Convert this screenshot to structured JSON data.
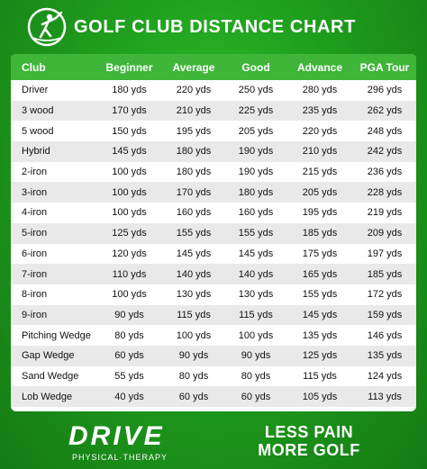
{
  "header": {
    "title": "GOLF CLUB DISTANCE CHART",
    "logo_icon": "golfer-swing-icon"
  },
  "table": {
    "columns": [
      "Club",
      "Beginner",
      "Average",
      "Good",
      "Advance",
      "PGA Tour"
    ],
    "rows": [
      [
        "Driver",
        "180 yds",
        "220 yds",
        "250 yds",
        "280 yds",
        "296 yds"
      ],
      [
        "3 wood",
        "170 yds",
        "210 yds",
        "225 yds",
        "235 yds",
        "262 yds"
      ],
      [
        "5 wood",
        "150 yds",
        "195 yds",
        "205 yds",
        "220 yds",
        "248 yds"
      ],
      [
        "Hybrid",
        "145 yds",
        "180 yds",
        "190 yds",
        "210 yds",
        "242 yds"
      ],
      [
        "2-iron",
        "100 yds",
        "180 yds",
        "190 yds",
        "215 yds",
        "236 yds"
      ],
      [
        "3-iron",
        "100 yds",
        "170 yds",
        "180 yds",
        "205 yds",
        "228 yds"
      ],
      [
        "4-iron",
        "100 yds",
        "160 yds",
        "160 yds",
        "195 yds",
        "219 yds"
      ],
      [
        "5-iron",
        "125 yds",
        "155 yds",
        "155 yds",
        "185 yds",
        "209 yds"
      ],
      [
        "6-iron",
        "120 yds",
        "145 yds",
        "145 yds",
        "175 yds",
        "197 yds"
      ],
      [
        "7-iron",
        "110 yds",
        "140 yds",
        "140 yds",
        "165 yds",
        "185 yds"
      ],
      [
        "8-iron",
        "100 yds",
        "130 yds",
        "130 yds",
        "155 yds",
        "172 yds"
      ],
      [
        "9-iron",
        "90 yds",
        "115 yds",
        "115 yds",
        "145 yds",
        "159 yds"
      ],
      [
        "Pitching Wedge",
        "80 yds",
        "100 yds",
        "100 yds",
        "135 yds",
        "146 yds"
      ],
      [
        "Gap Wedge",
        "60 yds",
        "90 yds",
        "90 yds",
        "125 yds",
        "135 yds"
      ],
      [
        "Sand Wedge",
        "55 yds",
        "80 yds",
        "80 yds",
        "115 yds",
        "124 yds"
      ],
      [
        "Lob Wedge",
        "40 yds",
        "60 yds",
        "60 yds",
        "105 yds",
        "113 yds"
      ]
    ]
  },
  "footer": {
    "brand": "DRIVE",
    "brand_sub": "PHYSICAL·THERAPY",
    "slogan_line1": "LESS PAIN",
    "slogan_line2": "MORE GOLF"
  }
}
